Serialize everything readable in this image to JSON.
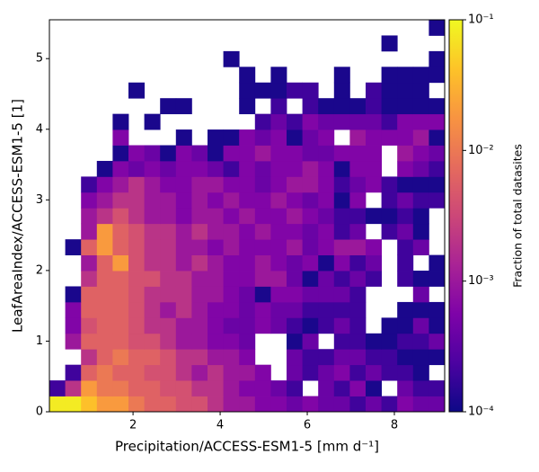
{
  "chart_data": {
    "type": "heatmap",
    "xlabel": "Precipitation/ACCESS-ESM1-5 [mm d⁻¹]",
    "ylabel": "LeafAreaIndex/ACCESS-ESM1-5 [1]",
    "colorbar_label": "Fraction of total datasites",
    "colormap": "plasma",
    "log_color": true,
    "xlim": [
      0.08,
      9.155
    ],
    "ylim": [
      0,
      5.55
    ],
    "xticks": [
      2,
      4,
      6,
      8
    ],
    "yticks": [
      0,
      1,
      2,
      3,
      4,
      5
    ],
    "clim": [
      0.0001,
      0.1
    ],
    "cticks": [
      {
        "value": 0.0001,
        "label": "10⁻⁴"
      },
      {
        "value": 0.001,
        "label": "10⁻³"
      },
      {
        "value": 0.01,
        "label": "10⁻²"
      },
      {
        "value": 0.1,
        "label": "10⁻¹"
      }
    ],
    "xbins": [
      0.08,
      0.443,
      0.806,
      1.169,
      1.532,
      1.895,
      2.258,
      2.621,
      2.984,
      3.347,
      3.71,
      4.073,
      4.436,
      4.799,
      5.162,
      5.525,
      5.888,
      6.251,
      6.614,
      6.977,
      7.34,
      7.703,
      8.066,
      8.429,
      8.792,
      9.155
    ],
    "ybins": [
      0,
      0.222,
      0.444,
      0.666,
      0.888,
      1.11,
      1.332,
      1.554,
      1.776,
      1.998,
      2.22,
      2.442,
      2.664,
      2.886,
      3.108,
      3.33,
      3.552,
      3.774,
      3.996,
      4.218,
      4.44,
      4.662,
      4.884,
      5.106,
      5.328,
      5.55
    ],
    "z": [
      [
        0.08,
        0.08,
        0.04,
        0.02,
        0.02,
        0.01,
        0.006,
        0.006,
        0.004,
        0.004,
        0.002,
        0.001,
        0.001,
        0.0006,
        0.0006,
        0.0004,
        0.0006,
        0.0004,
        0.0004,
        0.0002,
        0.0004,
        0.0002,
        0.0006,
        0.0004,
        0.0004
      ],
      [
        0.0002,
        0.002,
        0.02,
        0.01,
        0.01,
        0.006,
        0.006,
        0.004,
        0.004,
        0.002,
        0.002,
        0.001,
        0.0006,
        0.0006,
        0.0004,
        0.0002,
        null,
        0.0004,
        0.0002,
        0.0006,
        0.00012,
        null,
        0.0004,
        0.0002,
        0.0002
      ],
      [
        null,
        0.0002,
        0.006,
        0.01,
        0.006,
        0.006,
        0.004,
        0.004,
        0.002,
        0.001,
        0.002,
        0.001,
        0.001,
        0.0006,
        null,
        0.0004,
        0.0002,
        0.0004,
        0.0006,
        0.0002,
        0.0004,
        0.0002,
        0.0002,
        0.00012,
        null
      ],
      [
        null,
        null,
        0.002,
        0.006,
        0.01,
        0.006,
        0.006,
        0.004,
        0.002,
        0.002,
        0.001,
        0.001,
        0.0006,
        null,
        null,
        0.0004,
        0.0002,
        0.0002,
        0.0004,
        0.0004,
        0.0002,
        0.0002,
        0.00012,
        0.00012,
        0.00012
      ],
      [
        null,
        0.001,
        0.006,
        0.006,
        0.006,
        0.004,
        0.004,
        0.002,
        0.001,
        0.001,
        0.0006,
        0.0006,
        0.0004,
        null,
        null,
        0.00012,
        0.0004,
        null,
        0.0002,
        0.0002,
        0.00012,
        0.00012,
        0.0002,
        0.0002,
        0.0004
      ],
      [
        null,
        0.0006,
        0.004,
        0.006,
        0.006,
        0.004,
        0.002,
        0.002,
        0.001,
        0.001,
        0.0006,
        0.0004,
        0.0004,
        0.0006,
        0.0004,
        0.0002,
        0.00012,
        0.0002,
        0.0004,
        0.0002,
        null,
        0.00012,
        0.00012,
        0.0004,
        0.00012
      ],
      [
        null,
        0.0006,
        0.006,
        0.006,
        0.006,
        0.004,
        0.002,
        0.001,
        0.002,
        0.001,
        0.0006,
        0.0006,
        0.0004,
        0.0006,
        0.0004,
        0.0004,
        0.0002,
        0.0002,
        0.0002,
        0.0002,
        null,
        null,
        0.00012,
        0.00012,
        0.00012
      ],
      [
        null,
        0.00012,
        0.006,
        0.006,
        0.006,
        0.004,
        0.002,
        0.002,
        0.002,
        0.001,
        0.001,
        0.0006,
        0.0004,
        0.00012,
        0.0006,
        0.0006,
        0.0004,
        0.0004,
        0.0004,
        0.0002,
        null,
        null,
        null,
        0.0004,
        null
      ],
      [
        null,
        null,
        0.002,
        0.006,
        0.006,
        0.004,
        0.004,
        0.002,
        0.002,
        0.001,
        0.001,
        0.0006,
        0.0006,
        0.001,
        0.001,
        0.0004,
        0.00012,
        0.0004,
        0.0002,
        0.0004,
        0.0002,
        null,
        0.0002,
        0.00012,
        0.00012
      ],
      [
        null,
        null,
        0.001,
        0.006,
        0.02,
        0.004,
        0.002,
        0.002,
        0.001,
        0.002,
        0.001,
        0.0006,
        0.0006,
        0.001,
        0.0006,
        0.0004,
        0.0006,
        0.00012,
        0.0006,
        0.0002,
        0.0004,
        null,
        0.0002,
        null,
        0.00012
      ],
      [
        null,
        0.00012,
        0.006,
        0.02,
        0.006,
        0.004,
        0.002,
        0.002,
        0.001,
        0.001,
        0.0006,
        0.001,
        0.0006,
        0.0006,
        0.0006,
        0.001,
        0.0004,
        0.0006,
        0.001,
        0.001,
        0.0006,
        null,
        0.0002,
        0.0004,
        null
      ],
      [
        null,
        null,
        0.001,
        0.02,
        0.006,
        0.004,
        0.002,
        0.002,
        0.001,
        0.002,
        0.001,
        0.001,
        0.0006,
        0.001,
        0.0006,
        0.0006,
        0.0004,
        0.0006,
        0.0002,
        0.0004,
        null,
        0.0002,
        0.0004,
        0.00012,
        null
      ],
      [
        null,
        null,
        0.001,
        0.002,
        0.004,
        0.002,
        0.001,
        0.001,
        0.0006,
        0.001,
        0.001,
        0.0006,
        0.001,
        0.0006,
        0.0006,
        0.001,
        0.0006,
        0.0004,
        0.0002,
        0.0002,
        0.00012,
        0.00012,
        0.0002,
        0.00012,
        null
      ],
      [
        null,
        null,
        0.0006,
        0.001,
        0.002,
        0.002,
        0.001,
        0.001,
        0.0006,
        0.001,
        0.0006,
        0.001,
        0.0006,
        0.0006,
        0.001,
        0.0006,
        0.0004,
        0.0006,
        0.00012,
        0.0006,
        null,
        0.0002,
        0.0004,
        0.0002,
        0.0002
      ],
      [
        null,
        null,
        0.0002,
        0.0006,
        0.001,
        0.002,
        0.001,
        0.0006,
        0.0006,
        0.001,
        0.001,
        0.0006,
        0.0006,
        0.0004,
        0.0006,
        0.001,
        0.001,
        0.0006,
        0.0002,
        0.0004,
        0.0006,
        0.0002,
        0.00012,
        0.00012,
        0.00012
      ],
      [
        null,
        null,
        null,
        0.00012,
        0.0006,
        0.0004,
        0.0006,
        0.0004,
        0.0006,
        0.0006,
        0.0004,
        0.0002,
        0.0006,
        0.0004,
        0.0006,
        0.0006,
        0.001,
        0.0006,
        0.00012,
        0.0006,
        0.0006,
        null,
        0.0006,
        0.0004,
        0.0002
      ],
      [
        null,
        null,
        null,
        null,
        0.00012,
        0.0006,
        0.0004,
        0.00012,
        0.0006,
        0.0004,
        0.00012,
        0.0006,
        0.0006,
        0.001,
        0.0006,
        0.0006,
        0.0004,
        0.0004,
        0.0006,
        0.0006,
        0.0006,
        null,
        0.001,
        0.0006,
        0.0004
      ],
      [
        null,
        null,
        null,
        null,
        0.0006,
        null,
        null,
        null,
        0.00012,
        null,
        0.00012,
        0.00012,
        0.0006,
        0.0004,
        0.0006,
        0.00012,
        0.0004,
        0.0006,
        null,
        0.001,
        0.0006,
        0.0006,
        0.0006,
        0.001,
        0.00012
      ],
      [
        null,
        null,
        null,
        null,
        0.00012,
        null,
        0.00012,
        null,
        null,
        null,
        null,
        null,
        null,
        0.0002,
        0.0004,
        0.0002,
        0.0006,
        0.0004,
        0.0004,
        0.0004,
        0.0004,
        0.0002,
        0.0006,
        0.0006,
        0.0006
      ],
      [
        null,
        null,
        null,
        null,
        null,
        null,
        null,
        0.00012,
        0.00012,
        null,
        null,
        null,
        0.00012,
        null,
        0.0002,
        null,
        0.0002,
        0.00012,
        0.00012,
        0.00012,
        0.0002,
        0.00012,
        0.00012,
        0.00012,
        0.00012
      ],
      [
        null,
        null,
        null,
        null,
        null,
        0.00012,
        null,
        null,
        null,
        null,
        null,
        null,
        0.00012,
        0.00012,
        0.00012,
        0.0002,
        0.0002,
        null,
        0.00012,
        null,
        0.0002,
        0.00012,
        0.00012,
        0.00012,
        null
      ],
      [
        null,
        null,
        null,
        null,
        null,
        null,
        null,
        null,
        null,
        null,
        null,
        null,
        0.00012,
        null,
        0.00012,
        null,
        null,
        null,
        0.00012,
        null,
        null,
        0.00012,
        0.00012,
        0.00012,
        0.00012
      ],
      [
        null,
        null,
        null,
        null,
        null,
        null,
        null,
        null,
        null,
        null,
        null,
        0.00012,
        null,
        null,
        null,
        null,
        null,
        null,
        null,
        null,
        null,
        null,
        null,
        null,
        0.00012
      ],
      [
        null,
        null,
        null,
        null,
        null,
        null,
        null,
        null,
        null,
        null,
        null,
        null,
        null,
        null,
        null,
        null,
        null,
        null,
        null,
        null,
        null,
        0.00012,
        null,
        null,
        null
      ],
      [
        null,
        null,
        null,
        null,
        null,
        null,
        null,
        null,
        null,
        null,
        null,
        null,
        null,
        null,
        null,
        null,
        null,
        null,
        null,
        null,
        null,
        null,
        null,
        null,
        0.00012
      ]
    ]
  }
}
